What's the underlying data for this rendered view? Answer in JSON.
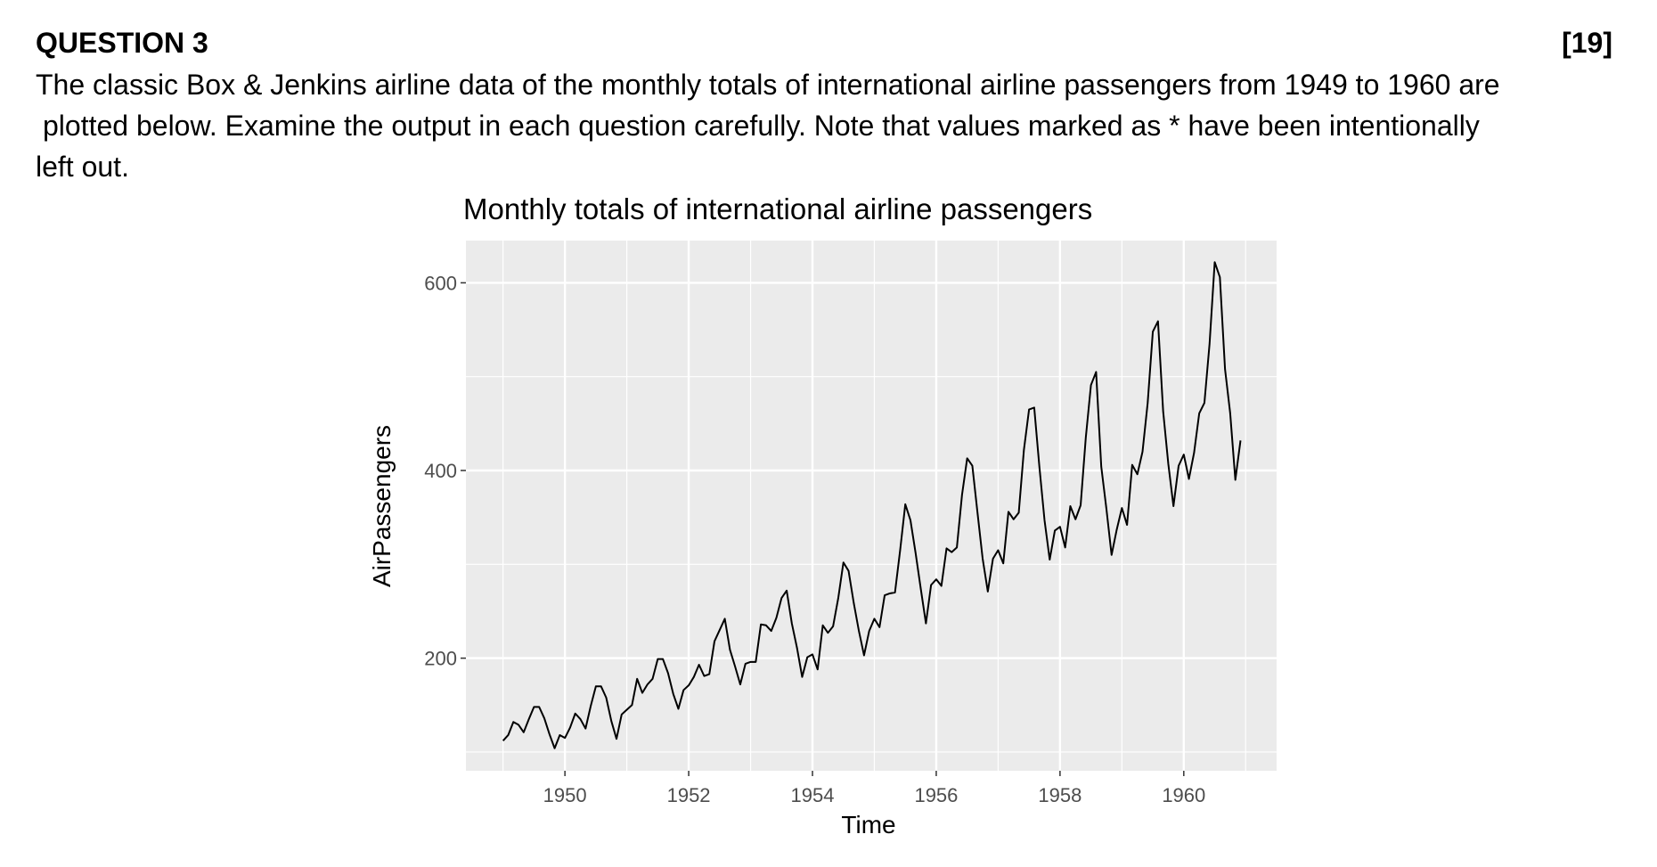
{
  "question": {
    "title": "QUESTION 3",
    "marks": "[19]",
    "lines": [
      "The classic Box & Jenkins airline data of the monthly totals of international airline passengers from 1949 to 1960 are",
      "plotted below. Examine the output in each question carefully. Note that values marked as * have been intentionally",
      "left out."
    ]
  },
  "chart_data": {
    "type": "line",
    "title": "Monthly totals of international airline passengers",
    "xlabel": "Time",
    "ylabel": "AirPassengers",
    "x_start": 1949,
    "frequency": 12,
    "xlim": [
      1948.4,
      1961.5
    ],
    "ylim": [
      80,
      645
    ],
    "x_ticks": [
      1950,
      1952,
      1954,
      1956,
      1958,
      1960
    ],
    "y_ticks": [
      200,
      400,
      600
    ],
    "grid": true,
    "colors": {
      "panel": "#ebebeb",
      "grid": "#ffffff",
      "line": "#000000",
      "tick_text": "#4d4d4d"
    },
    "series": [
      {
        "name": "AirPassengers",
        "values": [
          112,
          118,
          132,
          129,
          121,
          135,
          148,
          148,
          136,
          119,
          104,
          118,
          115,
          126,
          141,
          135,
          125,
          149,
          170,
          170,
          158,
          133,
          114,
          140,
          145,
          150,
          178,
          163,
          172,
          178,
          199,
          199,
          184,
          162,
          146,
          166,
          171,
          180,
          193,
          181,
          183,
          218,
          230,
          242,
          209,
          191,
          172,
          194,
          196,
          196,
          236,
          235,
          229,
          243,
          264,
          272,
          237,
          211,
          180,
          201,
          204,
          188,
          235,
          227,
          234,
          264,
          302,
          293,
          259,
          229,
          203,
          229,
          242,
          233,
          267,
          269,
          270,
          315,
          364,
          347,
          312,
          274,
          237,
          278,
          284,
          277,
          317,
          313,
          318,
          374,
          413,
          405,
          355,
          306,
          271,
          306,
          315,
          301,
          356,
          348,
          355,
          422,
          465,
          467,
          404,
          347,
          305,
          336,
          340,
          318,
          362,
          348,
          363,
          435,
          491,
          505,
          404,
          359,
          310,
          337,
          360,
          342,
          406,
          396,
          420,
          472,
          548,
          559,
          463,
          407,
          362,
          405,
          417,
          391,
          419,
          461,
          472,
          535,
          622,
          606,
          508,
          461,
          390,
          432
        ]
      }
    ]
  }
}
